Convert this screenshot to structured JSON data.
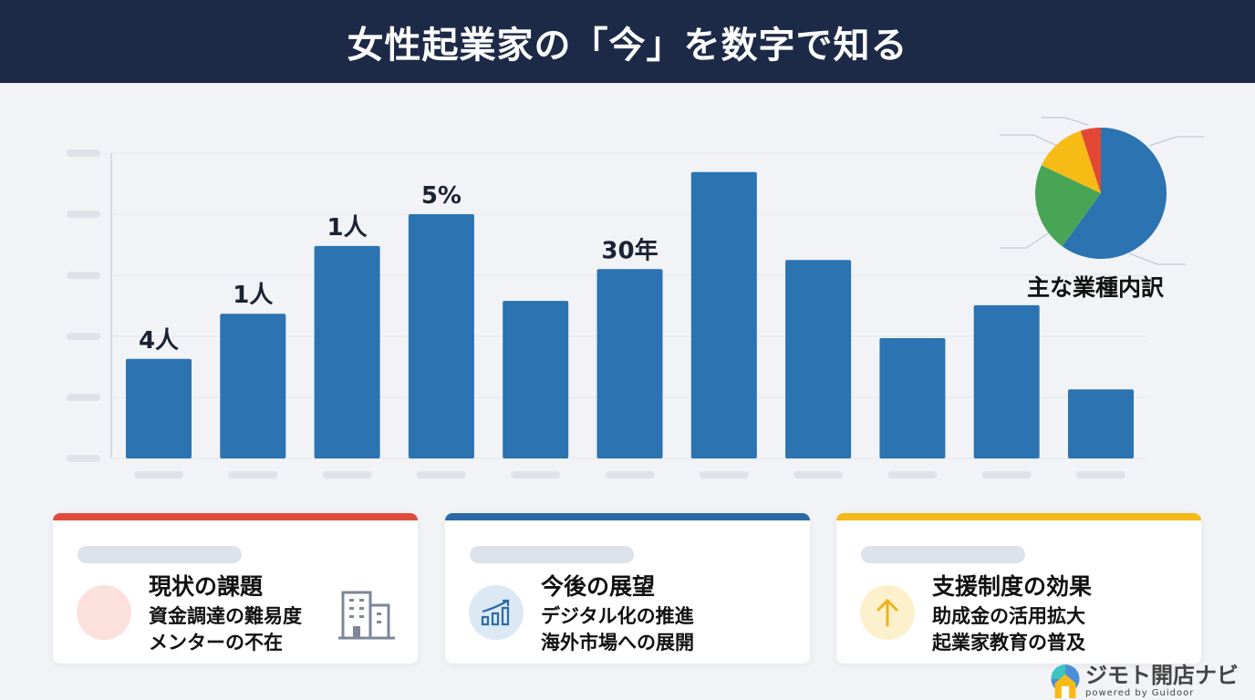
{
  "header": {
    "title": "女性起業家の「今」を数字で知る"
  },
  "chart_data": [
    {
      "type": "bar",
      "title": "",
      "xlabel": "",
      "ylabel": "",
      "ylim": [
        0,
        5
      ],
      "grid": true,
      "categories": [
        "",
        "",
        "",
        "",
        "",
        "",
        "",
        "",
        "",
        "",
        ""
      ],
      "values": [
        1.63,
        2.37,
        3.48,
        4.0,
        2.58,
        3.1,
        4.69,
        3.25,
        1.97,
        2.51,
        1.13
      ],
      "data_labels": [
        "4人",
        "1人",
        "1人",
        "5%",
        "",
        "30年",
        "",
        "",
        "",
        "",
        ""
      ],
      "color": "#2b73b1"
    },
    {
      "type": "pie",
      "title": "主な業種内訳",
      "values": [
        60,
        22,
        13,
        5
      ],
      "colors": [
        "#2b73b1",
        "#47a555",
        "#f7bb16",
        "#e34733"
      ]
    }
  ],
  "cards": [
    {
      "title": "現状の課題",
      "lines": [
        "資金調達の難易度",
        "メンターの不在"
      ],
      "accent": "#e04a3a",
      "icon": "building-icon"
    },
    {
      "title": "今後の展望",
      "lines": [
        "デジタル化の推進",
        "海外市場への展開"
      ],
      "accent": "#2b6aa6",
      "icon": "growth-chart-icon"
    },
    {
      "title": "支援制度の効果",
      "lines": [
        "助成金の活用拡大",
        "起業家教育の普及"
      ],
      "accent": "#f4b916",
      "icon": "arrow-up-icon"
    }
  ],
  "logo": {
    "name": "ジモト開店ナビ",
    "sub": "powered by Guidoor"
  }
}
